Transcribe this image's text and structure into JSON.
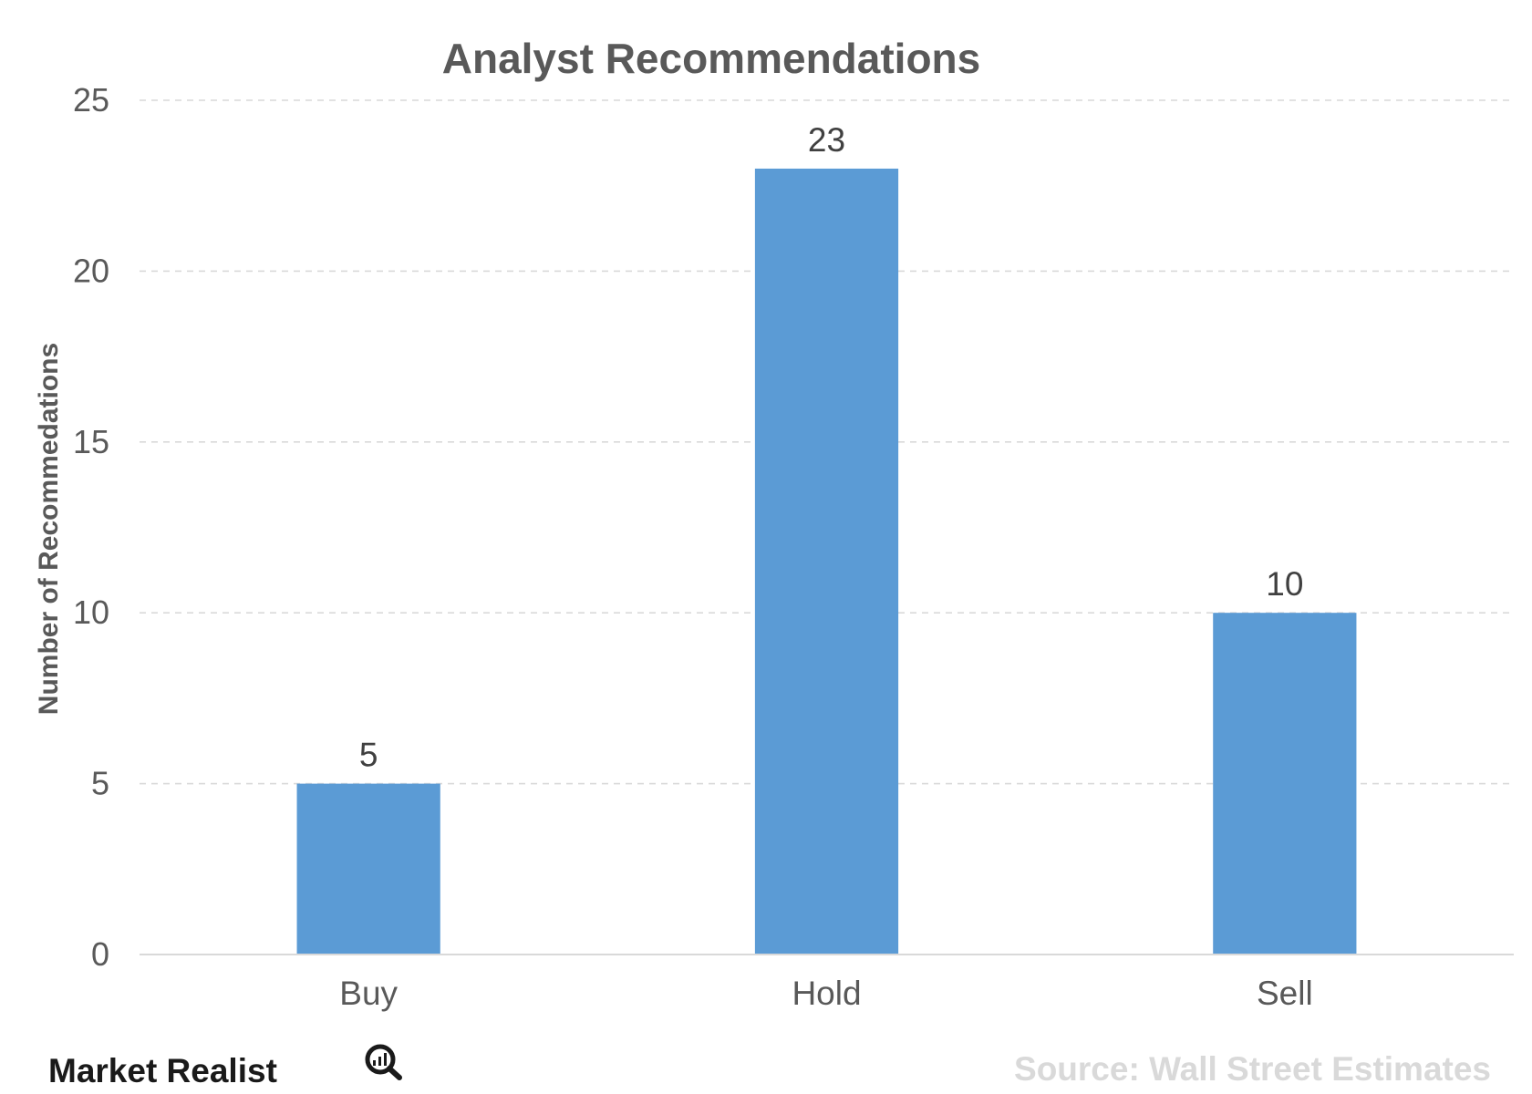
{
  "chart_data": {
    "type": "bar",
    "title": "Analyst Recommendations",
    "xlabel": "",
    "ylabel": "Number of Recommedations",
    "categories": [
      "Buy",
      "Hold",
      "Sell"
    ],
    "values": [
      5,
      23,
      10
    ],
    "data_labels": [
      "5",
      "23",
      "10"
    ],
    "ylim": [
      0,
      25
    ],
    "yticks": [
      0,
      5,
      10,
      15,
      20,
      25
    ],
    "grid": true,
    "legend": "none",
    "bar_color": "#5b9bd5"
  },
  "footer": {
    "brand": "Market Realist",
    "source": "Source: Wall Street Estimates"
  }
}
